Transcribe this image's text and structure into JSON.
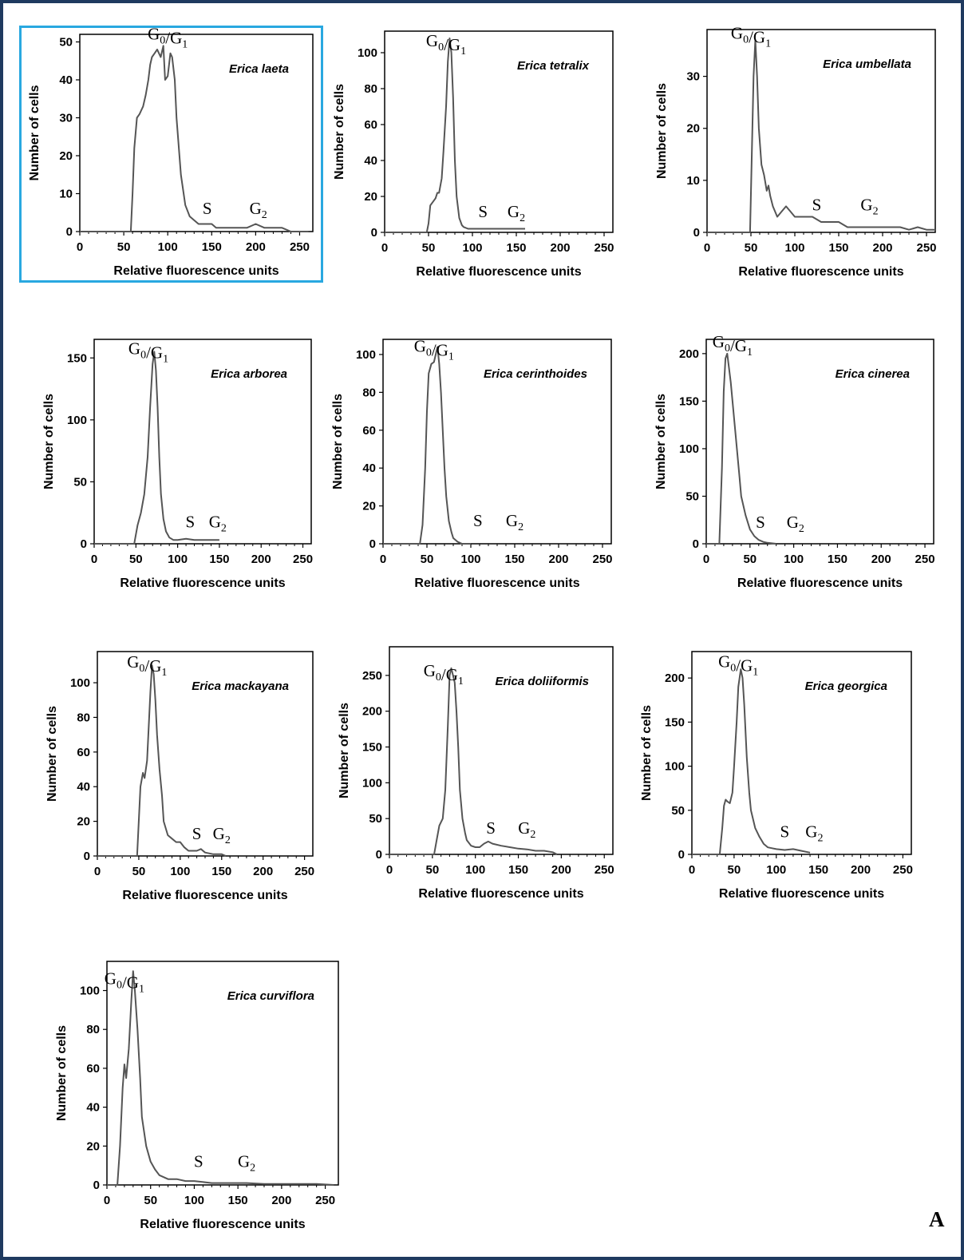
{
  "figure": {
    "panel_letter": "A",
    "highlight_color": "#29a8e0",
    "frame_color": "#1f3a5f",
    "line_color": "#555555"
  },
  "chart_data": [
    {
      "type": "line",
      "title": "Erica laeta",
      "xlabel": "Relative fluorescence units",
      "ylabel": "Number of cells",
      "xlim": [
        0,
        265
      ],
      "ylim": [
        0,
        52
      ],
      "xticks": [
        0,
        50,
        100,
        150,
        200,
        250
      ],
      "yticks": [
        0,
        10,
        20,
        30,
        40,
        50
      ],
      "peak_labels": [
        {
          "text": "G0/G1",
          "x": 100,
          "y": 49
        },
        {
          "text": "S",
          "x": 145,
          "y": 3
        },
        {
          "text": "G2",
          "x": 203,
          "y": 3
        }
      ],
      "x": [
        0,
        58,
        60,
        62,
        65,
        68,
        70,
        72,
        75,
        78,
        80,
        82,
        85,
        88,
        90,
        92,
        95,
        97,
        100,
        103,
        105,
        108,
        110,
        115,
        120,
        125,
        130,
        135,
        140,
        145,
        150,
        155,
        160,
        170,
        180,
        190,
        200,
        210,
        220,
        230,
        240,
        250,
        260
      ],
      "y": [
        0,
        0,
        10,
        22,
        30,
        31,
        32,
        33,
        36,
        40,
        44,
        46,
        47,
        48,
        47,
        46,
        49,
        40,
        41,
        47,
        46,
        40,
        30,
        15,
        7,
        4,
        3,
        2,
        2,
        2,
        2,
        1,
        1,
        1,
        1,
        1,
        2,
        1,
        1,
        1,
        0,
        0,
        0
      ]
    },
    {
      "type": "line",
      "title": "Erica tetralix",
      "xlabel": "Relative fluorescence units",
      "ylabel": "Number of cells",
      "xlim": [
        0,
        260
      ],
      "ylim": [
        0,
        112
      ],
      "xticks": [
        0,
        50,
        100,
        150,
        200,
        250
      ],
      "yticks": [
        0,
        20,
        40,
        60,
        80,
        100
      ],
      "peak_labels": [
        {
          "text": "G0/G1",
          "x": 70,
          "y": 100
        },
        {
          "text": "S",
          "x": 112,
          "y": 5
        },
        {
          "text": "G2",
          "x": 150,
          "y": 5
        }
      ],
      "x": [
        0,
        48,
        50,
        52,
        55,
        58,
        60,
        62,
        65,
        67,
        70,
        72,
        74,
        76,
        78,
        80,
        82,
        85,
        88,
        90,
        95,
        100,
        110,
        120,
        130,
        140,
        150,
        160
      ],
      "y": [
        0,
        0,
        5,
        15,
        17,
        19,
        22,
        22,
        30,
        45,
        70,
        95,
        108,
        100,
        75,
        40,
        20,
        8,
        4,
        3,
        2,
        2,
        2,
        2,
        2,
        2,
        2,
        2
      ]
    },
    {
      "type": "line",
      "title": "Erica umbellata",
      "xlabel": "Relative fluorescence units",
      "ylabel": "Number of cells",
      "xlim": [
        0,
        260
      ],
      "ylim": [
        0,
        39
      ],
      "xticks": [
        0,
        50,
        100,
        150,
        200,
        250
      ],
      "yticks": [
        0,
        10,
        20,
        30
      ],
      "peak_labels": [
        {
          "text": "G0/G1",
          "x": 50,
          "y": 36
        },
        {
          "text": "S",
          "x": 125,
          "y": 3
        },
        {
          "text": "G2",
          "x": 185,
          "y": 3
        }
      ],
      "x": [
        0,
        49,
        51,
        53,
        55,
        57,
        59,
        62,
        65,
        68,
        70,
        72,
        75,
        80,
        85,
        90,
        95,
        100,
        110,
        120,
        130,
        140,
        150,
        160,
        170,
        180,
        190,
        200,
        210,
        220,
        230,
        240,
        250,
        260
      ],
      "y": [
        0,
        0,
        15,
        30,
        37,
        30,
        20,
        13,
        11,
        8,
        9,
        7,
        5,
        3,
        4,
        5,
        4,
        3,
        3,
        3,
        2,
        2,
        2,
        1,
        1,
        1,
        1,
        1,
        1,
        1,
        0.5,
        1,
        0.5,
        0.5
      ]
    },
    {
      "type": "line",
      "title": "Erica arborea",
      "xlabel": "Relative fluorescence units",
      "ylabel": "Number of cells",
      "xlim": [
        0,
        260
      ],
      "ylim": [
        0,
        165
      ],
      "xticks": [
        0,
        50,
        100,
        150,
        200,
        250
      ],
      "yticks": [
        0,
        50,
        100,
        150
      ],
      "peak_labels": [
        {
          "text": "G0/G1",
          "x": 65,
          "y": 148
        },
        {
          "text": "S",
          "x": 115,
          "y": 8
        },
        {
          "text": "G2",
          "x": 148,
          "y": 8
        }
      ],
      "x": [
        0,
        48,
        52,
        56,
        60,
        64,
        67,
        70,
        72,
        74,
        76,
        78,
        80,
        83,
        86,
        90,
        95,
        100,
        110,
        120,
        130,
        140,
        150
      ],
      "y": [
        0,
        0,
        15,
        25,
        40,
        70,
        110,
        145,
        155,
        140,
        110,
        70,
        40,
        20,
        10,
        5,
        3,
        3,
        4,
        3,
        3,
        3,
        3
      ]
    },
    {
      "type": "line",
      "title": "Erica cerinthoides",
      "xlabel": "Relative fluorescence units",
      "ylabel": "Number of cells",
      "xlim": [
        0,
        260
      ],
      "ylim": [
        0,
        108
      ],
      "xticks": [
        0,
        50,
        100,
        150,
        200,
        250
      ],
      "yticks": [
        0,
        20,
        40,
        60,
        80,
        100
      ],
      "peak_labels": [
        {
          "text": "G0/G1",
          "x": 58,
          "y": 98
        },
        {
          "text": "S",
          "x": 108,
          "y": 6
        },
        {
          "text": "G2",
          "x": 150,
          "y": 6
        }
      ],
      "x": [
        0,
        42,
        45,
        48,
        50,
        52,
        55,
        58,
        60,
        62,
        64,
        66,
        68,
        70,
        72,
        75,
        78,
        80,
        85,
        90,
        100
      ],
      "y": [
        0,
        0,
        10,
        40,
        70,
        90,
        95,
        96,
        100,
        104,
        95,
        80,
        60,
        40,
        25,
        12,
        6,
        3,
        1,
        0,
        0
      ]
    },
    {
      "type": "line",
      "title": "Erica cinerea",
      "xlabel": "Relative fluorescence units",
      "ylabel": "Number of cells",
      "xlim": [
        0,
        260
      ],
      "ylim": [
        0,
        215
      ],
      "xticks": [
        0,
        50,
        100,
        150,
        200,
        250
      ],
      "yticks": [
        0,
        50,
        100,
        150,
        200
      ],
      "peak_labels": [
        {
          "text": "G0/G1",
          "x": 30,
          "y": 200
        },
        {
          "text": "S",
          "x": 62,
          "y": 10
        },
        {
          "text": "G2",
          "x": 102,
          "y": 10
        }
      ],
      "x": [
        0,
        15,
        18,
        20,
        22,
        24,
        26,
        28,
        30,
        32,
        35,
        38,
        40,
        45,
        50,
        55,
        60,
        65,
        70,
        80
      ],
      "y": [
        0,
        0,
        80,
        160,
        195,
        200,
        185,
        170,
        150,
        130,
        100,
        70,
        50,
        30,
        15,
        8,
        4,
        2,
        1,
        0
      ]
    },
    {
      "type": "line",
      "title": "Erica mackayana",
      "xlabel": "Relative fluorescence units",
      "ylabel": "Number of cells",
      "xlim": [
        0,
        260
      ],
      "ylim": [
        0,
        118
      ],
      "xticks": [
        0,
        50,
        100,
        150,
        200,
        250
      ],
      "yticks": [
        0,
        20,
        40,
        60,
        80,
        100
      ],
      "peak_labels": [
        {
          "text": "G0/G1",
          "x": 60,
          "y": 105
        },
        {
          "text": "S",
          "x": 120,
          "y": 6
        },
        {
          "text": "G2",
          "x": 150,
          "y": 6
        }
      ],
      "x": [
        0,
        48,
        50,
        52,
        55,
        57,
        60,
        62,
        64,
        66,
        68,
        70,
        72,
        75,
        78,
        80,
        85,
        90,
        95,
        100,
        105,
        110,
        115,
        120,
        125,
        130,
        140,
        150,
        155
      ],
      "y": [
        0,
        0,
        20,
        40,
        48,
        45,
        55,
        75,
        95,
        110,
        105,
        90,
        70,
        50,
        35,
        20,
        12,
        10,
        8,
        8,
        5,
        3,
        3,
        3,
        4,
        2,
        1,
        1,
        0
      ]
    },
    {
      "type": "line",
      "title": "Erica doliiformis",
      "xlabel": "Relative fluorescence units",
      "ylabel": "Number of cells",
      "xlim": [
        0,
        260
      ],
      "ylim": [
        0,
        290
      ],
      "xticks": [
        0,
        50,
        100,
        150,
        200,
        250
      ],
      "yticks": [
        0,
        50,
        100,
        150,
        200,
        250
      ],
      "peak_labels": [
        {
          "text": "G0/G1",
          "x": 63,
          "y": 240
        },
        {
          "text": "S",
          "x": 118,
          "y": 20
        },
        {
          "text": "G2",
          "x": 160,
          "y": 20
        }
      ],
      "x": [
        0,
        52,
        55,
        58,
        60,
        62,
        65,
        68,
        70,
        72,
        74,
        76,
        78,
        80,
        82,
        85,
        88,
        90,
        95,
        100,
        105,
        110,
        115,
        120,
        130,
        140,
        150,
        160,
        170,
        180,
        190,
        195
      ],
      "y": [
        0,
        0,
        20,
        40,
        45,
        50,
        90,
        180,
        250,
        260,
        250,
        240,
        200,
        150,
        90,
        50,
        30,
        20,
        12,
        10,
        10,
        15,
        18,
        15,
        12,
        10,
        8,
        7,
        5,
        5,
        3,
        0
      ]
    },
    {
      "type": "line",
      "title": "Erica georgica",
      "xlabel": "Relative fluorescence units",
      "ylabel": "Number of cells",
      "xlim": [
        0,
        260
      ],
      "ylim": [
        0,
        230
      ],
      "xticks": [
        0,
        50,
        100,
        150,
        200,
        250
      ],
      "yticks": [
        0,
        50,
        100,
        150,
        200
      ],
      "peak_labels": [
        {
          "text": "G0/G1",
          "x": 55,
          "y": 205
        },
        {
          "text": "S",
          "x": 110,
          "y": 12
        },
        {
          "text": "G2",
          "x": 145,
          "y": 12
        }
      ],
      "x": [
        0,
        33,
        36,
        38,
        40,
        42,
        45,
        48,
        50,
        53,
        55,
        58,
        60,
        62,
        65,
        68,
        70,
        75,
        80,
        85,
        90,
        95,
        100,
        110,
        120,
        130,
        140
      ],
      "y": [
        0,
        0,
        30,
        55,
        62,
        60,
        58,
        70,
        100,
        150,
        190,
        210,
        200,
        170,
        110,
        70,
        50,
        30,
        20,
        12,
        8,
        7,
        6,
        5,
        6,
        4,
        2
      ]
    },
    {
      "type": "line",
      "title": "Erica curviflora",
      "xlabel": "Relative fluorescence units",
      "ylabel": "Number of cells",
      "xlim": [
        0,
        265
      ],
      "ylim": [
        0,
        115
      ],
      "xticks": [
        0,
        50,
        100,
        150,
        200,
        250
      ],
      "yticks": [
        0,
        20,
        40,
        60,
        80,
        100
      ],
      "peak_labels": [
        {
          "text": "G0/G1",
          "x": 20,
          "y": 100
        },
        {
          "text": "S",
          "x": 105,
          "y": 6
        },
        {
          "text": "G2",
          "x": 160,
          "y": 6
        }
      ],
      "x": [
        0,
        12,
        15,
        18,
        20,
        22,
        25,
        28,
        30,
        32,
        35,
        38,
        40,
        45,
        50,
        55,
        60,
        70,
        80,
        90,
        100,
        120,
        140,
        160,
        180,
        200,
        220,
        240,
        260
      ],
      "y": [
        0,
        0,
        20,
        50,
        62,
        55,
        70,
        95,
        110,
        100,
        80,
        55,
        35,
        20,
        12,
        8,
        5,
        3,
        3,
        2,
        2,
        1,
        1,
        1,
        0.5,
        0.5,
        0.5,
        0.5,
        0
      ]
    }
  ]
}
